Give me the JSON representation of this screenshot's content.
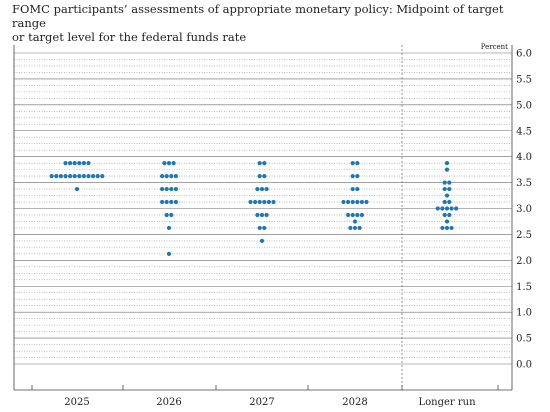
{
  "header": {
    "title_line1": "FOMC participants’ assessments of appropriate monetary policy: Midpoint of target range",
    "title_line2": "or target level for the federal funds rate"
  },
  "chart_data": {
    "type": "scatter",
    "title": "FOMC participants’ assessments of appropriate monetary policy: Midpoint of target range or target level for the federal funds rate",
    "ylabel": "Percent",
    "ylim": [
      0.0,
      6.0
    ],
    "yticks": [
      "0.0",
      "0.5",
      "1.0",
      "1.5",
      "2.0",
      "2.5",
      "3.0",
      "3.5",
      "4.0",
      "4.5",
      "5.0",
      "5.5",
      "6.0"
    ],
    "categories": [
      "2025",
      "2026",
      "2027",
      "2028",
      "Longer run"
    ],
    "grid": "solid at whole and half percents, dotted at 0.125 steps",
    "separator": "vertical dotted line before Longer run",
    "dot_color": "#1f77b4",
    "dots": [
      [
        {
          "value": 3.875,
          "count": 6
        },
        {
          "value": 3.625,
          "count": 12
        },
        {
          "value": 3.375,
          "count": 1
        }
      ],
      [
        {
          "value": 3.875,
          "count": 3
        },
        {
          "value": 3.625,
          "count": 4
        },
        {
          "value": 3.375,
          "count": 4
        },
        {
          "value": 3.125,
          "count": 4
        },
        {
          "value": 2.875,
          "count": 2
        },
        {
          "value": 2.625,
          "count": 1
        },
        {
          "value": 2.125,
          "count": 1
        }
      ],
      [
        {
          "value": 3.875,
          "count": 2
        },
        {
          "value": 3.625,
          "count": 2
        },
        {
          "value": 3.375,
          "count": 3
        },
        {
          "value": 3.125,
          "count": 6
        },
        {
          "value": 2.875,
          "count": 3
        },
        {
          "value": 2.625,
          "count": 2
        },
        {
          "value": 2.375,
          "count": 1
        }
      ],
      [
        {
          "value": 3.875,
          "count": 2
        },
        {
          "value": 3.625,
          "count": 2
        },
        {
          "value": 3.375,
          "count": 2
        },
        {
          "value": 3.125,
          "count": 6
        },
        {
          "value": 2.875,
          "count": 4
        },
        {
          "value": 2.75,
          "count": 1
        },
        {
          "value": 2.625,
          "count": 3
        }
      ],
      [
        {
          "value": 3.875,
          "count": 1
        },
        {
          "value": 3.75,
          "count": 1
        },
        {
          "value": 3.5,
          "count": 2
        },
        {
          "value": 3.375,
          "count": 2
        },
        {
          "value": 3.25,
          "count": 1
        },
        {
          "value": 3.125,
          "count": 2
        },
        {
          "value": 3.0,
          "count": 5
        },
        {
          "value": 2.875,
          "count": 2
        },
        {
          "value": 2.75,
          "count": 1
        },
        {
          "value": 2.625,
          "count": 3
        }
      ]
    ]
  }
}
